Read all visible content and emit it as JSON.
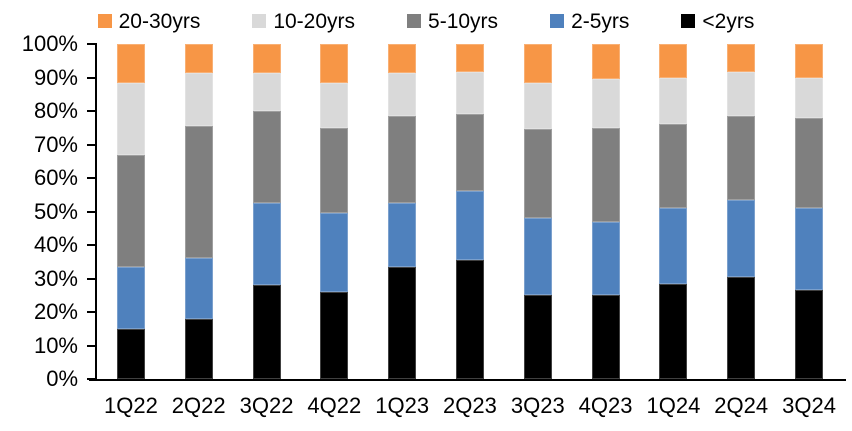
{
  "colors": {
    "orange": "#F79646",
    "light_gray": "#D9D9D9",
    "dark_gray": "#7F7F7F",
    "blue": "#4F81BD",
    "black": "#000000",
    "axis": "#000000"
  },
  "legend": {
    "position": "top",
    "items": [
      {
        "label": "20-30yrs",
        "color": "#F79646"
      },
      {
        "label": "10-20yrs",
        "color": "#D9D9D9"
      },
      {
        "label": "5-10yrs",
        "color": "#7F7F7F"
      },
      {
        "label": "2-5yrs",
        "color": "#4F81BD"
      },
      {
        "label": "<2yrs",
        "color": "#000000"
      }
    ]
  },
  "chart_data": {
    "type": "bar",
    "stacked": true,
    "percent_stacked": true,
    "title": "",
    "xlabel": "",
    "ylabel": "",
    "ylim": [
      0,
      100
    ],
    "ytick_step": 10,
    "yticks": [
      "0%",
      "10%",
      "20%",
      "30%",
      "40%",
      "50%",
      "60%",
      "70%",
      "80%",
      "90%",
      "100%"
    ],
    "grid": false,
    "legend_position": "top",
    "categories": [
      "1Q22",
      "2Q22",
      "3Q22",
      "4Q22",
      "1Q23",
      "2Q23",
      "3Q23",
      "4Q23",
      "1Q24",
      "2Q24",
      "3Q24"
    ],
    "series": [
      {
        "name": "<2yrs",
        "color": "#000000",
        "values": [
          15,
          18,
          28,
          26,
          33.5,
          35.5,
          25,
          25,
          28.5,
          30.5,
          26.5
        ]
      },
      {
        "name": "2-5yrs",
        "color": "#4F81BD",
        "values": [
          18.5,
          18,
          24.5,
          23.5,
          19,
          20.5,
          23,
          22,
          22.5,
          23,
          24.5
        ]
      },
      {
        "name": "5-10yrs",
        "color": "#7F7F7F",
        "values": [
          33.5,
          39.5,
          27.5,
          25.5,
          26,
          23,
          26.5,
          28,
          25,
          25,
          27
        ]
      },
      {
        "name": "10-20yrs",
        "color": "#D9D9D9",
        "values": [
          21.5,
          16,
          11.5,
          13.5,
          13,
          12.5,
          14,
          14.5,
          14,
          13,
          12
        ]
      },
      {
        "name": "20-30yrs",
        "color": "#F79646",
        "values": [
          11.5,
          8.5,
          8.5,
          11.5,
          8.5,
          8.5,
          11.5,
          10.5,
          10,
          8.5,
          10
        ]
      }
    ]
  }
}
